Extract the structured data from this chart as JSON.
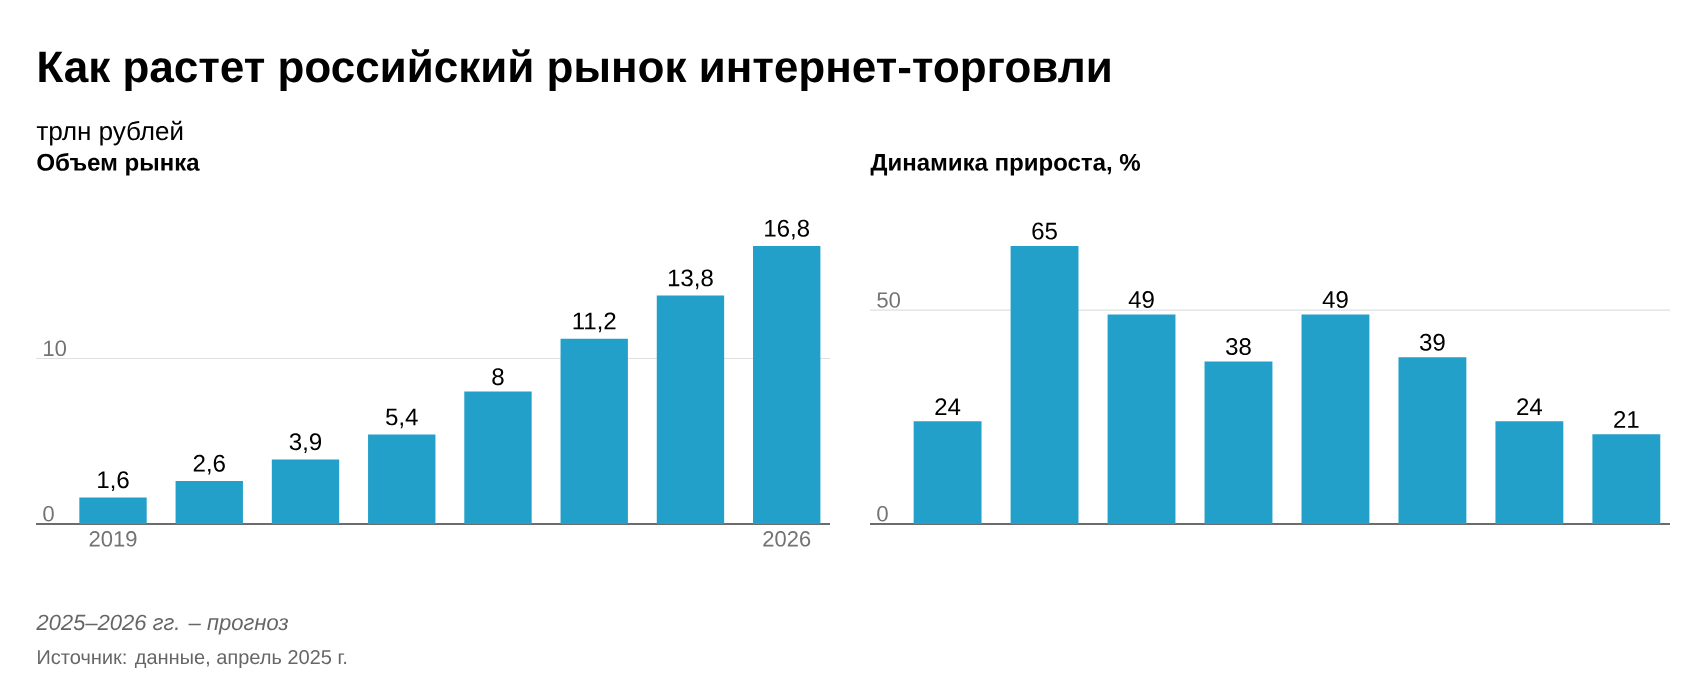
{
  "chart_data": [
    {
      "type": "bar",
      "title": "Объем рынка",
      "categories": [
        "2019",
        null,
        null,
        null,
        null,
        null,
        null,
        "2026"
      ],
      "values": [
        1.6,
        2.6,
        3.9,
        5.4,
        8,
        11.2,
        13.8,
        16.8
      ],
      "value_labels": [
        "1,6",
        "2,6",
        "3,9",
        "5,4",
        "8",
        "11,2",
        "13,8",
        "16,8"
      ],
      "color": "#23a0c9",
      "ylim": [
        0,
        16.8
      ],
      "yticks": [
        0,
        10
      ],
      "grid": "y"
    },
    {
      "type": "bar",
      "title": "Динамика прироста, %",
      "categories": [
        null,
        null,
        null,
        null,
        null,
        null,
        null,
        null
      ],
      "values": [
        24,
        65,
        49,
        38,
        49,
        39,
        24,
        21
      ],
      "value_labels": [
        "24",
        "65",
        "49",
        "38",
        "49",
        "39",
        "24",
        "21"
      ],
      "color": "#23a0c9",
      "ylim": [
        0,
        65
      ],
      "yticks": [
        0,
        50
      ],
      "grid": "y",
      "tick_labels": "y"
    },
    {
      "type": "other",
      "title": "Как растет российский рынок интернет-торговли",
      "subtitle": "трлн рублей",
      "annotations": [
        "2025–2026 гг. – прогноз",
        "Источник: данные, апрель 2025 г."
      ]
    }
  ]
}
